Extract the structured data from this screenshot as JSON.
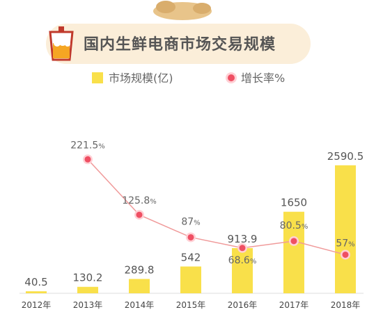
{
  "header": {
    "title": "国内生鲜电商市场交易规模"
  },
  "legend": {
    "bar_label": "市场规模(亿)",
    "line_label": "增长率%"
  },
  "colors": {
    "bar": "#f9e04a",
    "line": "#f09a9a",
    "marker_fill": "#ef4f63",
    "marker_ring": "#ffd0d5",
    "title_band": "#fbeed9"
  },
  "chart_data": {
    "type": "bar",
    "categories": [
      "2012年",
      "2013年",
      "2014年",
      "2015年",
      "2016年",
      "2017年",
      "2018年"
    ],
    "series": [
      {
        "name": "市场规模(亿)",
        "type": "bar",
        "values": [
          40.5,
          130.2,
          289.8,
          542,
          913.9,
          1650,
          2590.5
        ],
        "labels": [
          "40.5",
          "130.2",
          "289.8",
          "542",
          "913.9",
          "1650",
          "2590.5"
        ]
      },
      {
        "name": "增长率%",
        "type": "line",
        "values": [
          null,
          221.5,
          125.8,
          87,
          68.6,
          80.5,
          57
        ],
        "labels": [
          "",
          "221.5",
          "125.8",
          "87",
          "68.6",
          "80.5",
          "57"
        ],
        "unit": "%"
      }
    ]
  }
}
